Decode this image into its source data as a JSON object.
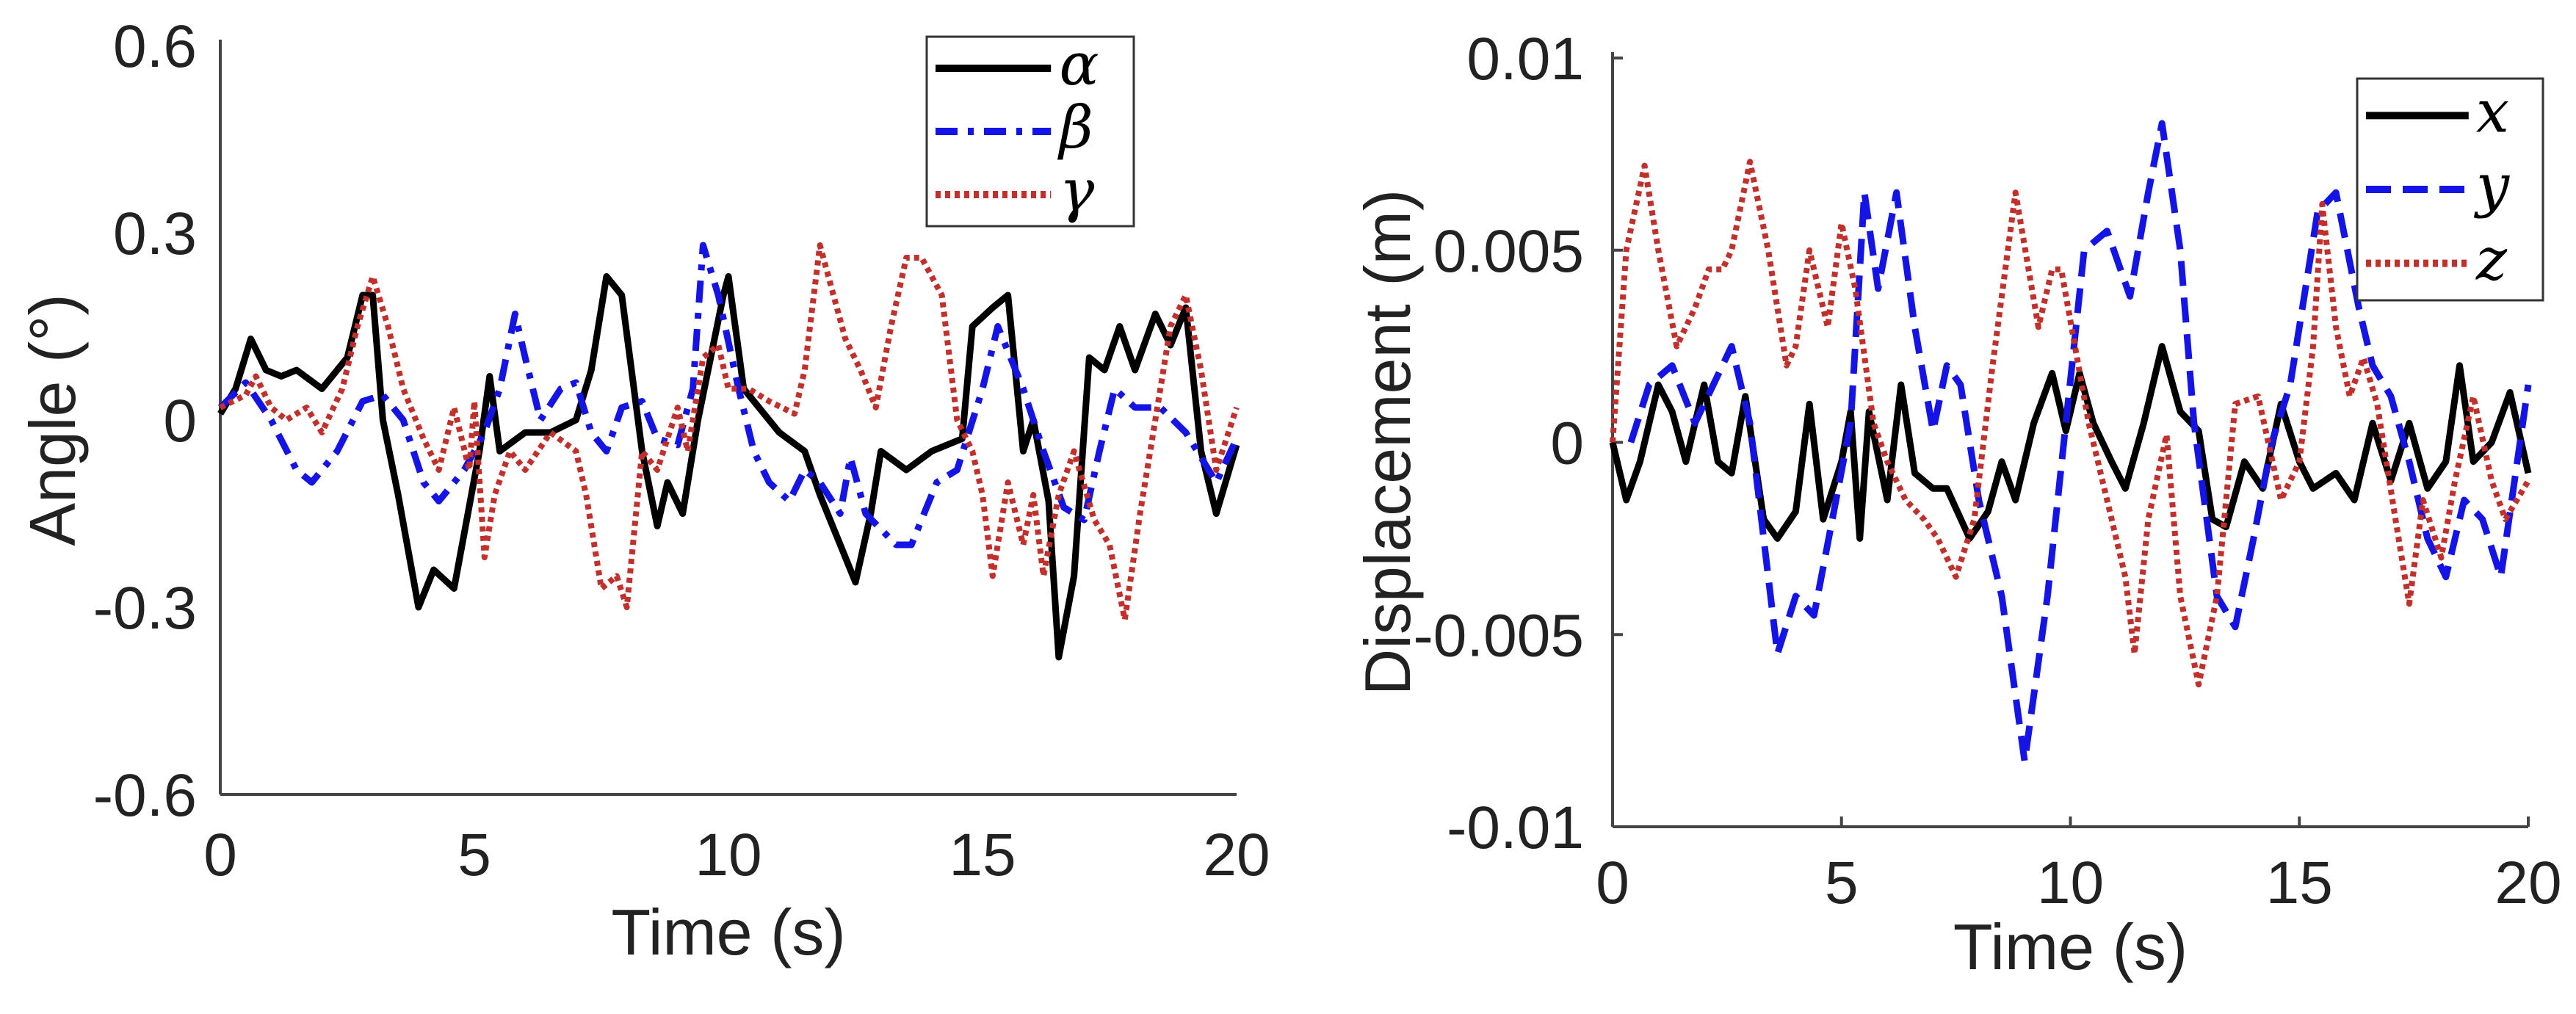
{
  "chart_data": [
    {
      "type": "line",
      "xlabel": "Time (s)",
      "ylabel": "Angle (°)",
      "xlim": [
        0,
        20
      ],
      "ylim": [
        -0.6,
        0.6
      ],
      "xticks": [
        "0",
        "5",
        "10",
        "15",
        "20"
      ],
      "yticks": [
        "0.6",
        "0.3",
        "0",
        "-0.3",
        "-0.6"
      ],
      "grid": false,
      "legend_position": "top-right",
      "series": [
        {
          "name": "α",
          "color": "#000000",
          "style": "solid",
          "x": [
            0,
            0.3,
            0.6,
            0.9,
            1.2,
            1.5,
            2,
            2.5,
            2.8,
            3.0,
            3.2,
            3.5,
            3.9,
            4.2,
            4.6,
            5.1,
            5.3,
            5.5,
            6,
            6.5,
            7,
            7.3,
            7.6,
            7.9,
            8.3,
            8.6,
            8.8,
            9.1,
            9.4,
            9.9,
            10,
            10.3,
            11,
            11.5,
            11.8,
            12.3,
            12.5,
            12.8,
            13,
            13.5,
            14,
            14.6,
            14.8,
            15.2,
            15.5,
            15.8,
            16,
            16.3,
            16.5,
            16.8,
            17.1,
            17.4,
            17.7,
            18,
            18.4,
            18.7,
            19,
            19.3,
            19.6,
            20
          ],
          "y": [
            0.01,
            0.05,
            0.13,
            0.08,
            0.07,
            0.08,
            0.05,
            0.1,
            0.2,
            0.2,
            0,
            -0.12,
            -0.3,
            -0.24,
            -0.27,
            -0.05,
            0.07,
            -0.05,
            -0.02,
            -0.02,
            0,
            0.08,
            0.23,
            0.2,
            -0.05,
            -0.17,
            -0.1,
            -0.15,
            0,
            0.2,
            0.23,
            0.05,
            -0.02,
            -0.05,
            -0.12,
            -0.22,
            -0.26,
            -0.15,
            -0.05,
            -0.08,
            -0.05,
            -0.03,
            0.15,
            0.18,
            0.2,
            -0.05,
            0,
            -0.13,
            -0.38,
            -0.25,
            0.1,
            0.08,
            0.15,
            0.08,
            0.17,
            0.12,
            0.18,
            -0.05,
            -0.15,
            -0.04
          ]
        },
        {
          "name": "β",
          "color": "#1414e6",
          "style": "dashdot",
          "x": [
            0,
            0.5,
            1,
            1.5,
            1.8,
            2.3,
            2.8,
            3.2,
            3.6,
            4,
            4.3,
            4.8,
            5.2,
            5.5,
            5.8,
            6,
            6.3,
            6.7,
            7,
            7.3,
            7.6,
            7.9,
            8.3,
            8.6,
            9,
            9.3,
            9.5,
            9.8,
            10.2,
            10.5,
            10.8,
            11.2,
            11.5,
            11.8,
            12.2,
            12.4,
            12.7,
            13.3,
            13.6,
            14.1,
            14.5,
            15,
            15.3,
            15.8,
            16.2,
            16.6,
            17,
            17.3,
            17.6,
            18,
            18.5,
            19,
            19.6,
            20
          ],
          "y": [
            0.02,
            0.06,
            0,
            -0.08,
            -0.1,
            -0.05,
            0.03,
            0.04,
            0,
            -0.1,
            -0.13,
            -0.08,
            -0.02,
            0.05,
            0.17,
            0.1,
            0,
            0.05,
            0.06,
            -0.02,
            -0.05,
            0.02,
            0.03,
            -0.03,
            -0.04,
            0.05,
            0.28,
            0.2,
            0.05,
            -0.05,
            -0.1,
            -0.13,
            -0.08,
            -0.1,
            -0.15,
            -0.06,
            -0.15,
            -0.2,
            -0.2,
            -0.1,
            -0.08,
            0.05,
            0.15,
            0.05,
            -0.05,
            -0.14,
            -0.16,
            -0.05,
            0.05,
            0.02,
            0.02,
            -0.02,
            -0.1,
            -0.03
          ]
        },
        {
          "name": "γ",
          "color": "#c1302a",
          "style": "dotted",
          "x": [
            0,
            0.5,
            0.7,
            1,
            1.3,
            1.7,
            2,
            2.4,
            2.7,
            3,
            3.3,
            3.6,
            4,
            4.3,
            4.6,
            4.9,
            5,
            5.2,
            5.4,
            5.7,
            6,
            6.5,
            7,
            7.2,
            7.5,
            7.8,
            8,
            8.3,
            8.6,
            9,
            9.2,
            9.5,
            9.8,
            10,
            10.4,
            10.8,
            11.3,
            11.5,
            11.8,
            12,
            12.3,
            12.6,
            12.9,
            13.2,
            13.5,
            13.8,
            14.2,
            14.5,
            14.8,
            15,
            15.2,
            15.5,
            15.8,
            16,
            16.2,
            16.5,
            16.8,
            17.2,
            17.5,
            17.8,
            18.1,
            18.4,
            18.7,
            19,
            19.3,
            19.6,
            20
          ],
          "y": [
            0.02,
            0.04,
            0.07,
            0.02,
            0,
            0.02,
            -0.02,
            0.05,
            0.15,
            0.23,
            0.15,
            0.05,
            -0.03,
            -0.08,
            0.02,
            -0.08,
            0.03,
            -0.22,
            -0.12,
            -0.05,
            -0.08,
            -0.02,
            -0.05,
            -0.12,
            -0.27,
            -0.25,
            -0.3,
            -0.05,
            -0.08,
            0.02,
            -0.05,
            0.1,
            0.12,
            0.05,
            0.05,
            0.03,
            0.01,
            0.08,
            0.28,
            0.22,
            0.13,
            0.08,
            0.02,
            0.15,
            0.26,
            0.26,
            0.2,
            0,
            -0.05,
            -0.12,
            -0.25,
            -0.1,
            -0.2,
            -0.12,
            -0.25,
            -0.12,
            -0.05,
            -0.16,
            -0.2,
            -0.32,
            -0.15,
            0,
            0.15,
            0.2,
            0.08,
            -0.08,
            0.02
          ]
        }
      ]
    },
    {
      "type": "line",
      "xlabel": "Time (s)",
      "ylabel": "Displacement (m)",
      "xlim": [
        0,
        20
      ],
      "ylim": [
        -0.01,
        0.01
      ],
      "xticks": [
        "0",
        "5",
        "10",
        "15",
        "20"
      ],
      "yticks": [
        "0.01",
        "0.005",
        "0",
        "-0.005",
        "-0.01"
      ],
      "grid": false,
      "legend_position": "top-right",
      "series": [
        {
          "name": "x",
          "color": "#000000",
          "style": "solid",
          "x": [
            0,
            0.3,
            0.6,
            1,
            1.3,
            1.6,
            2,
            2.3,
            2.6,
            2.9,
            3.3,
            3.6,
            4,
            4.3,
            4.6,
            5,
            5.2,
            5.4,
            5.6,
            6,
            6.3,
            6.6,
            7,
            7.3,
            7.8,
            8.2,
            8.5,
            8.8,
            9.2,
            9.6,
            9.9,
            10.2,
            10.5,
            10.9,
            11.2,
            11.6,
            12,
            12.4,
            12.8,
            13.1,
            13.4,
            13.8,
            14.2,
            14.6,
            15,
            15.3,
            15.8,
            16.2,
            16.6,
            17,
            17.4,
            17.8,
            18.2,
            18.5,
            18.8,
            19.2,
            19.6,
            20
          ],
          "y": [
            0,
            -0.0015,
            -0.0005,
            0.0015,
            0.0008,
            -0.0005,
            0.0015,
            -0.0005,
            -0.0008,
            0.0012,
            -0.002,
            -0.0025,
            -0.0018,
            0.001,
            -0.002,
            -0.0005,
            0.0008,
            -0.0025,
            0.0008,
            -0.0015,
            0.0015,
            -0.0008,
            -0.0012,
            -0.0012,
            -0.0025,
            -0.0018,
            -0.0005,
            -0.0015,
            0.0005,
            0.0018,
            0.0003,
            0.0018,
            0.0005,
            -0.0005,
            -0.0012,
            0.0005,
            0.0025,
            0.0008,
            0.0003,
            -0.002,
            -0.0022,
            -0.0005,
            -0.0012,
            0.001,
            -0.0005,
            -0.0012,
            -0.0008,
            -0.0015,
            0.0005,
            -0.001,
            0.0005,
            -0.0012,
            -0.0005,
            0.002,
            -0.0005,
            0,
            0.0013,
            -0.0008
          ]
        },
        {
          "name": "y",
          "color": "#1414e6",
          "style": "dashed",
          "x": [
            0.4,
            0.8,
            1.3,
            1.8,
            2.2,
            2.6,
            3,
            3.3,
            3.6,
            4,
            4.4,
            4.8,
            5.2,
            5.5,
            5.8,
            6.2,
            6.6,
            7,
            7.3,
            7.6,
            8,
            8.5,
            9,
            9.5,
            9.9,
            10.3,
            10.8,
            11.3,
            11.7,
            12,
            12.4,
            12.7,
            13.2,
            13.6,
            14,
            14.4,
            14.8,
            15.4,
            15.8,
            16.3,
            16.6,
            17,
            17.4,
            17.8,
            18.2,
            18.6,
            19,
            19.4,
            19.7,
            20
          ],
          "y": [
            0,
            0.0015,
            0.002,
            0.0005,
            0.0015,
            0.0025,
            0.0005,
            -0.0025,
            -0.0055,
            -0.004,
            -0.0045,
            -0.002,
            0.0005,
            0.0065,
            0.004,
            0.0065,
            0.003,
            0.0003,
            0.002,
            0.0015,
            -0.0015,
            -0.004,
            -0.0083,
            -0.004,
            0.0005,
            0.005,
            0.0055,
            0.0038,
            0.0065,
            0.0083,
            0.005,
            0.0005,
            -0.004,
            -0.0048,
            -0.0025,
            0,
            0.0015,
            0.006,
            0.0065,
            0.0035,
            0.002,
            0.0012,
            -0.0005,
            -0.0025,
            -0.0035,
            -0.0015,
            -0.002,
            -0.0035,
            -0.001,
            0.0015
          ]
        },
        {
          "name": "z",
          "color": "#c1302a",
          "style": "dotted",
          "x": [
            0,
            0.3,
            0.7,
            1,
            1.4,
            1.8,
            2.1,
            2.4,
            2.6,
            3,
            3.4,
            3.8,
            4,
            4.3,
            4.7,
            5,
            5.3,
            5.7,
            6,
            6.4,
            6.8,
            7.1,
            7.5,
            7.9,
            8.3,
            8.8,
            9.3,
            9.6,
            9.8,
            10.1,
            10.4,
            10.8,
            11.2,
            11.4,
            11.7,
            12.1,
            12.4,
            12.8,
            13.2,
            13.6,
            14.1,
            14.6,
            15,
            15.3,
            15.5,
            15.8,
            16.1,
            16.4,
            16.7,
            17.1,
            17.4,
            17.7,
            18.1,
            18.4,
            18.8,
            19.2,
            19.5,
            20
          ],
          "y": [
            0,
            0.005,
            0.0072,
            0.005,
            0.0025,
            0.0035,
            0.0045,
            0.0045,
            0.005,
            0.0073,
            0.005,
            0.002,
            0.0025,
            0.005,
            0.003,
            0.0057,
            0.004,
            0.0005,
            -0.0005,
            -0.0015,
            -0.002,
            -0.0025,
            -0.0035,
            -0.002,
            0.002,
            0.0065,
            0.003,
            0.0045,
            0.0045,
            0.0025,
            0.0005,
            -0.0015,
            -0.0035,
            -0.0055,
            -0.002,
            0.0002,
            -0.004,
            -0.0063,
            -0.004,
            0.001,
            0.0012,
            -0.0015,
            -0.0005,
            0.0025,
            0.0062,
            0.003,
            0.0012,
            0.0022,
            0.001,
            -0.002,
            -0.0042,
            -0.0015,
            -0.003,
            -0.001,
            0.0012,
            -0.001,
            -0.002,
            -0.001
          ]
        }
      ]
    }
  ]
}
